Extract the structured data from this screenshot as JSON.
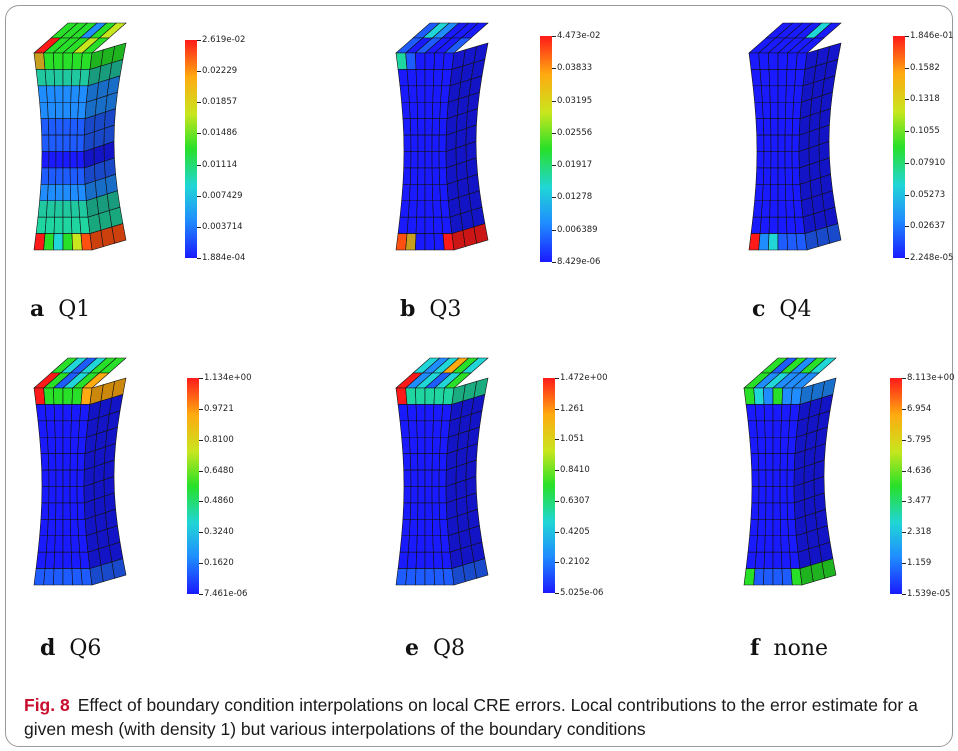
{
  "caption": {
    "figure_label": "Fig. 8",
    "text": "Effect of boundary condition interpolations on local CRE errors. Local contributions to the error estimate for a given mesh (with density 1) but various interpolations of the boundary conditions"
  },
  "panels": [
    {
      "letter": "a",
      "name": "Q1",
      "colorbar": [
        "2.619e-02",
        "0.02229",
        "0.01857",
        "0.01486",
        "0.01114",
        "0.007429",
        "0.003714",
        "1.884e-04"
      ]
    },
    {
      "letter": "b",
      "name": "Q3",
      "colorbar": [
        "4.473e-02",
        "0.03833",
        "0.03195",
        "0.02556",
        "0.01917",
        "0.01278",
        "0.006389",
        "8.429e-06"
      ]
    },
    {
      "letter": "c",
      "name": "Q4",
      "colorbar": [
        "1.846e-01",
        "0.1582",
        "0.1318",
        "0.1055",
        "0.07910",
        "0.05273",
        "0.02637",
        "2.248e-05"
      ]
    },
    {
      "letter": "d",
      "name": "Q6",
      "colorbar": [
        "1.134e+00",
        "0.9721",
        "0.8100",
        "0.6480",
        "0.4860",
        "0.3240",
        "0.1620",
        "7.461e-06"
      ]
    },
    {
      "letter": "e",
      "name": "Q8",
      "colorbar": [
        "1.472e+00",
        "1.261",
        "1.051",
        "0.8410",
        "0.6307",
        "0.4205",
        "0.2102",
        "5.025e-06"
      ]
    },
    {
      "letter": "f",
      "name": "none",
      "colorbar": [
        "8.113e+00",
        "6.954",
        "5.795",
        "4.636",
        "3.477",
        "2.318",
        "1.159",
        "1.539e-05"
      ]
    }
  ],
  "colors": {
    "low": "#1a1aff",
    "mid": "#28e028",
    "high": "#ff1a1a",
    "caption_accent": "#c8102e"
  }
}
